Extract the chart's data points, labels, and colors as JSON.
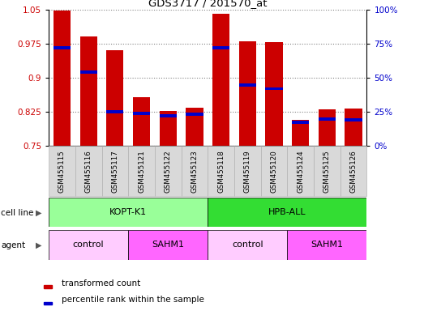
{
  "title": "GDS3717 / 201570_at",
  "samples": [
    "GSM455115",
    "GSM455116",
    "GSM455117",
    "GSM455121",
    "GSM455122",
    "GSM455123",
    "GSM455118",
    "GSM455119",
    "GSM455120",
    "GSM455124",
    "GSM455125",
    "GSM455126"
  ],
  "red_values": [
    1.047,
    0.99,
    0.96,
    0.858,
    0.828,
    0.835,
    1.04,
    0.98,
    0.978,
    0.807,
    0.83,
    0.833
  ],
  "blue_values": [
    0.966,
    0.913,
    0.825,
    0.822,
    0.817,
    0.82,
    0.965,
    0.884,
    0.876,
    0.803,
    0.81,
    0.808
  ],
  "ymin": 0.75,
  "ymax": 1.05,
  "y_ticks": [
    0.75,
    0.825,
    0.9,
    0.975,
    1.05
  ],
  "y_ticks_right": [
    0,
    25,
    50,
    75,
    100
  ],
  "red_color": "#cc0000",
  "blue_color": "#0000cc",
  "bar_width": 0.65,
  "cell_line_groups": [
    {
      "label": "KOPT-K1",
      "start": 0,
      "end": 6,
      "color": "#99ff99"
    },
    {
      "label": "HPB-ALL",
      "start": 6,
      "end": 12,
      "color": "#33dd33"
    }
  ],
  "agent_groups": [
    {
      "label": "control",
      "start": 0,
      "end": 3,
      "color": "#ffccff"
    },
    {
      "label": "SAHM1",
      "start": 3,
      "end": 6,
      "color": "#ff66ff"
    },
    {
      "label": "control",
      "start": 6,
      "end": 9,
      "color": "#ffccff"
    },
    {
      "label": "SAHM1",
      "start": 9,
      "end": 12,
      "color": "#ff66ff"
    }
  ],
  "bg_color": "#ffffff",
  "legend_items": [
    {
      "label": "transformed count",
      "color": "#cc0000"
    },
    {
      "label": "percentile rank within the sample",
      "color": "#0000cc"
    }
  ]
}
